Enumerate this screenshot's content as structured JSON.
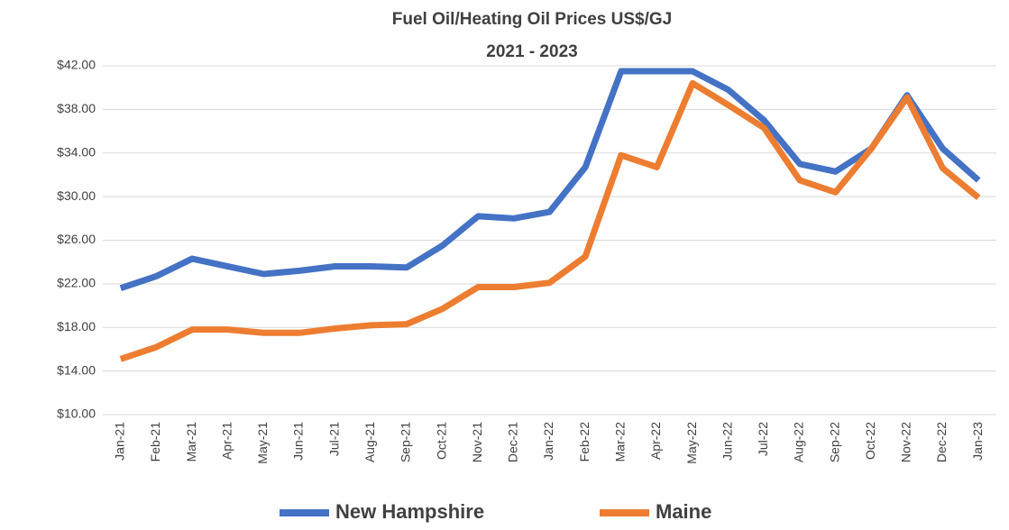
{
  "chart_data": {
    "type": "line",
    "title": "Fuel Oil/Heating Oil Prices US$/GJ",
    "subtitle": "2021 - 2023",
    "categories": [
      "Jan-21",
      "Feb-21",
      "Mar-21",
      "Apr-21",
      "May-21",
      "Jun-21",
      "Jul-21",
      "Aug-21",
      "Sep-21",
      "Oct-21",
      "Nov-21",
      "Dec-21",
      "Jan-22",
      "Feb-22",
      "Mar-22",
      "Apr-22",
      "May-22",
      "Jun-22",
      "Jul-22",
      "Aug-22",
      "Sep-22",
      "Oct-22",
      "Nov-22",
      "Dec-22",
      "Jan-23"
    ],
    "series": [
      {
        "name": "New Hampshire",
        "color": "#4472c4",
        "values": [
          21.6,
          22.7,
          24.3,
          23.6,
          22.9,
          23.2,
          23.6,
          23.6,
          23.5,
          25.5,
          28.2,
          28.0,
          28.6,
          32.7,
          41.5,
          41.5,
          41.5,
          39.8,
          37.0,
          33.0,
          32.3,
          34.4,
          39.3,
          34.4,
          31.5
        ]
      },
      {
        "name": "Maine",
        "color": "#ed7d31",
        "values": [
          15.1,
          16.2,
          17.8,
          17.8,
          17.5,
          17.5,
          17.9,
          18.2,
          18.3,
          19.7,
          21.7,
          21.7,
          22.1,
          24.5,
          33.8,
          32.7,
          40.4,
          38.4,
          36.3,
          31.5,
          30.4,
          34.4,
          39.1,
          32.6,
          29.9
        ]
      }
    ],
    "ylim": [
      10,
      42
    ],
    "yticks": [
      {
        "value": 10,
        "label": "$10.00"
      },
      {
        "value": 14,
        "label": "$14.00"
      },
      {
        "value": 18,
        "label": "$18.00"
      },
      {
        "value": 22,
        "label": "$22.00"
      },
      {
        "value": 26,
        "label": "$26.00"
      },
      {
        "value": 30,
        "label": "$30.00"
      },
      {
        "value": 34,
        "label": "$34.00"
      },
      {
        "value": 38,
        "label": "$38.00"
      },
      {
        "value": 42,
        "label": "$42.00"
      }
    ],
    "grid": true,
    "legend": "bottom"
  }
}
